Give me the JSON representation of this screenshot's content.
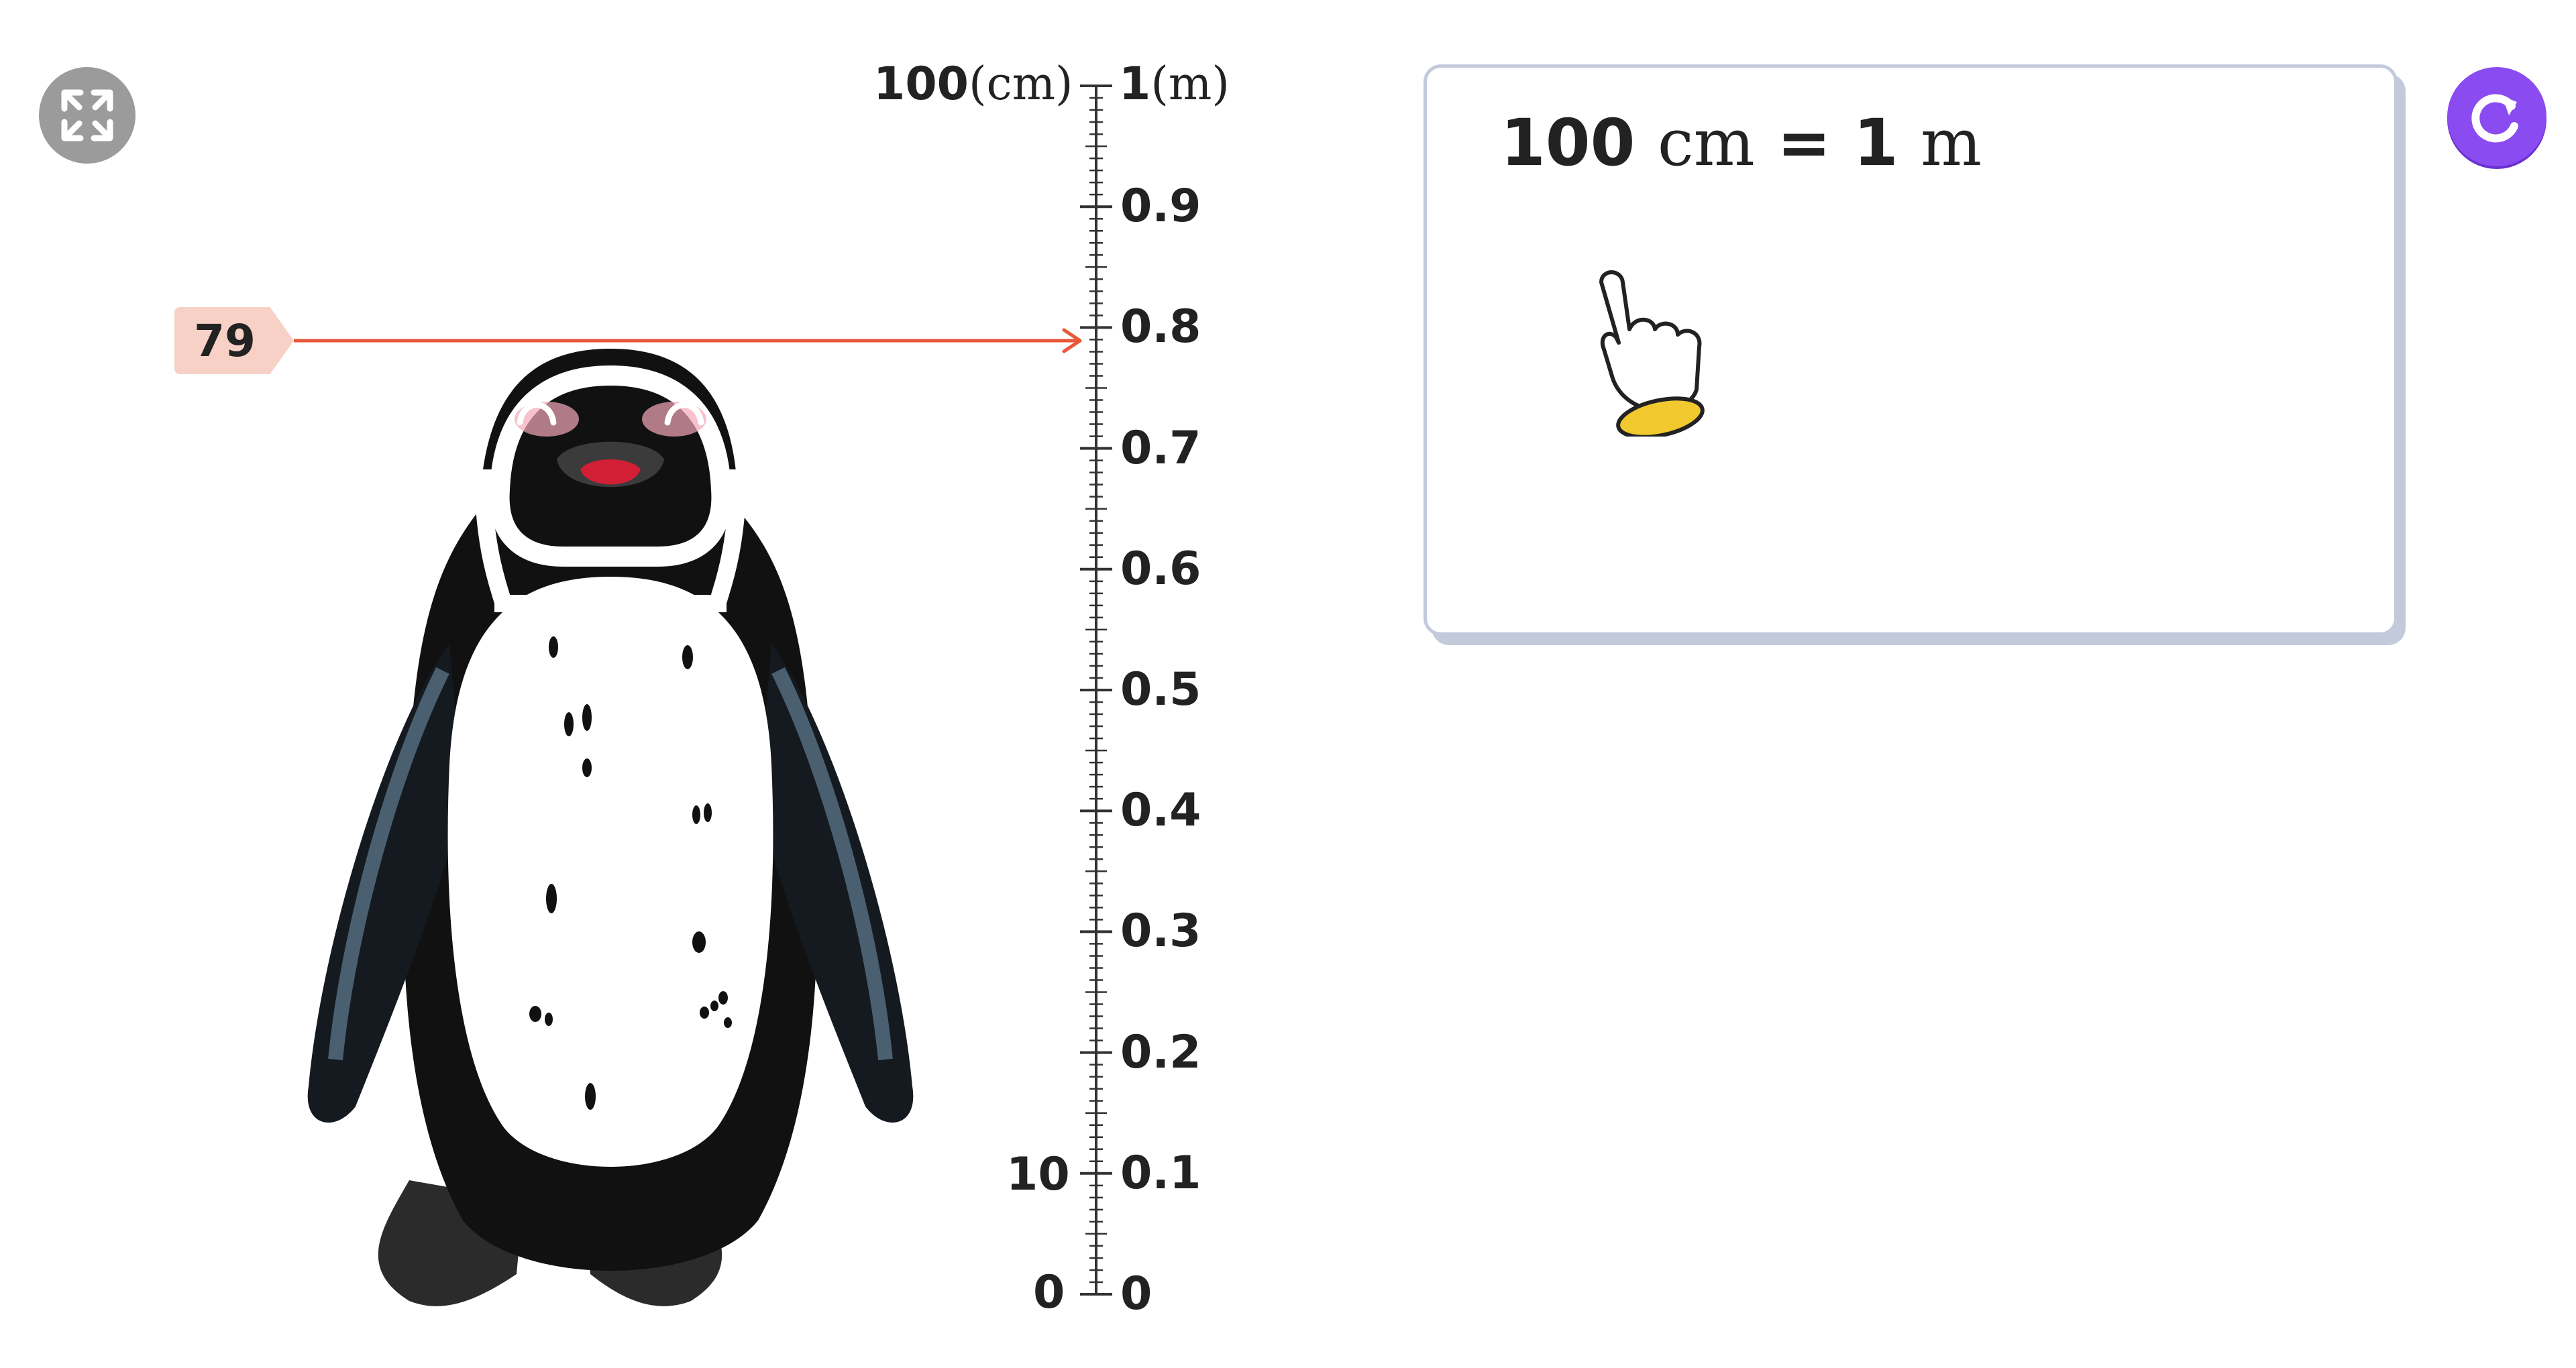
{
  "controls": {
    "fullscreen_icon": "fullscreen-arrows-icon",
    "reset_icon": "refresh-icon",
    "reset_color": "#8a4cf0"
  },
  "ruler": {
    "cm_top_label": "100",
    "cm_top_unit": "(cm)",
    "m_top_label": "1",
    "m_top_unit": "(m)",
    "cm_ten_label": "10",
    "cm_zero_label": "0",
    "m_labels": [
      "0.9",
      "0.8",
      "0.7",
      "0.6",
      "0.5",
      "0.4",
      "0.3",
      "0.2",
      "0.1",
      "0"
    ],
    "max_cm": 100
  },
  "marker": {
    "value": "79",
    "color": "#e8573a",
    "tag_color": "#f7d0c6"
  },
  "card": {
    "formula_left_value": "100",
    "formula_left_unit": "cm",
    "formula_equals": "=",
    "formula_right_value": "1",
    "formula_right_unit": "m",
    "hand_icon": "pointer-hand-icon"
  }
}
